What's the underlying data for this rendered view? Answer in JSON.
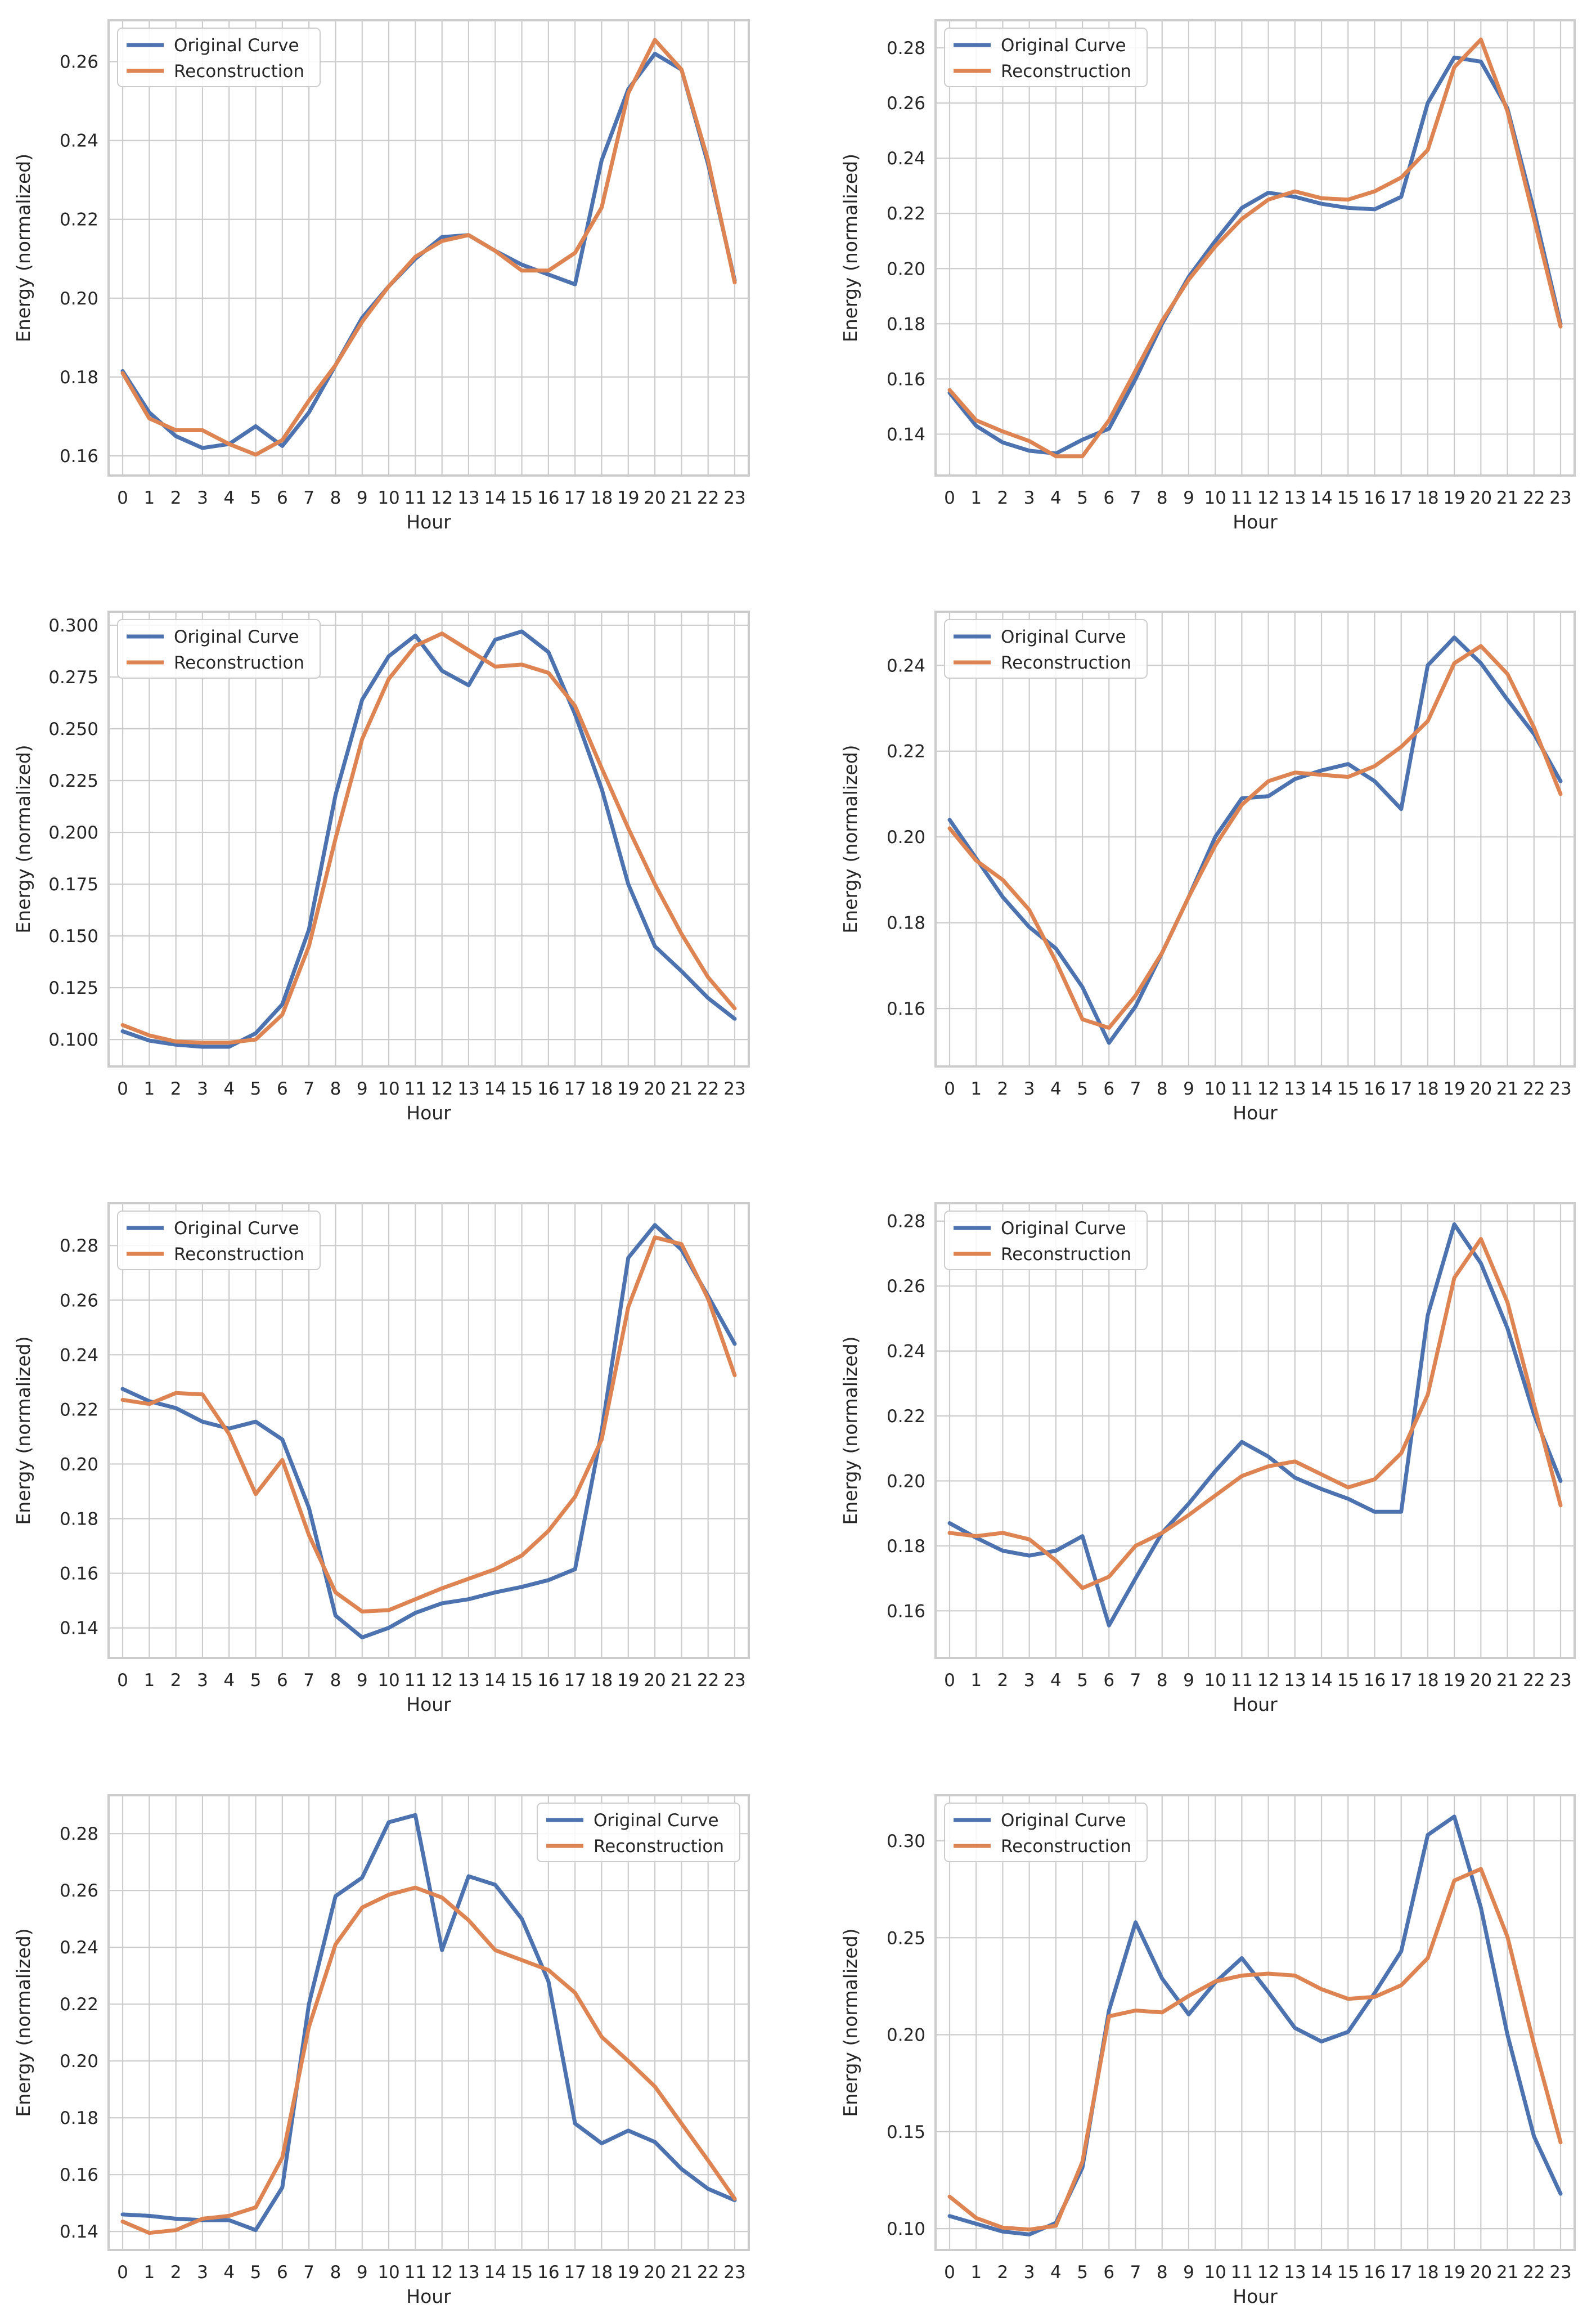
{
  "colors": {
    "original": "#4c72b0",
    "reconstruction": "#dd8452"
  },
  "chart_data": [
    {
      "type": "line",
      "xlabel": "Hour",
      "ylabel": "Energy (normalized)",
      "x": [
        0,
        1,
        2,
        3,
        4,
        5,
        6,
        7,
        8,
        9,
        10,
        11,
        12,
        13,
        14,
        15,
        16,
        17,
        18,
        19,
        20,
        21,
        22,
        23
      ],
      "ylim": [
        0.155,
        0.2705
      ],
      "yticks": [
        "0.16",
        "0.18",
        "0.20",
        "0.22",
        "0.24",
        "0.26"
      ],
      "legend_position": "upper-left",
      "series": [
        {
          "name": "Original Curve",
          "values": [
            0.1815,
            0.171,
            0.165,
            0.162,
            0.163,
            0.1675,
            0.1625,
            0.171,
            0.183,
            0.195,
            0.203,
            0.21,
            0.2155,
            0.216,
            0.212,
            0.2085,
            0.206,
            0.2035,
            0.235,
            0.253,
            0.262,
            0.258,
            0.234,
            0.2045
          ]
        },
        {
          "name": "Reconstruction",
          "values": [
            0.181,
            0.1695,
            0.1665,
            0.1665,
            0.163,
            0.1603,
            0.164,
            0.174,
            0.183,
            0.194,
            0.203,
            0.2105,
            0.2145,
            0.216,
            0.212,
            0.207,
            0.207,
            0.2115,
            0.223,
            0.252,
            0.2655,
            0.258,
            0.235,
            0.204
          ]
        }
      ]
    },
    {
      "type": "line",
      "xlabel": "Hour",
      "ylabel": "Energy (normalized)",
      "x": [
        0,
        1,
        2,
        3,
        4,
        5,
        6,
        7,
        8,
        9,
        10,
        11,
        12,
        13,
        14,
        15,
        16,
        17,
        18,
        19,
        20,
        21,
        22,
        23
      ],
      "ylim": [
        0.125,
        0.29
      ],
      "yticks": [
        "0.14",
        "0.16",
        "0.18",
        "0.20",
        "0.22",
        "0.24",
        "0.26",
        "0.28"
      ],
      "legend_position": "upper-left",
      "series": [
        {
          "name": "Original Curve",
          "values": [
            0.155,
            0.143,
            0.137,
            0.134,
            0.133,
            0.138,
            0.142,
            0.16,
            0.18,
            0.197,
            0.21,
            0.222,
            0.2275,
            0.226,
            0.2235,
            0.222,
            0.2215,
            0.226,
            0.26,
            0.2765,
            0.275,
            0.258,
            0.221,
            0.18
          ]
        },
        {
          "name": "Reconstruction",
          "values": [
            0.156,
            0.145,
            0.141,
            0.1375,
            0.132,
            0.132,
            0.145,
            0.163,
            0.181,
            0.196,
            0.208,
            0.218,
            0.225,
            0.228,
            0.2255,
            0.225,
            0.228,
            0.233,
            0.243,
            0.273,
            0.283,
            0.257,
            0.218,
            0.179
          ]
        }
      ]
    },
    {
      "type": "line",
      "xlabel": "Hour",
      "ylabel": "Energy (normalized)",
      "x": [
        0,
        1,
        2,
        3,
        4,
        5,
        6,
        7,
        8,
        9,
        10,
        11,
        12,
        13,
        14,
        15,
        16,
        17,
        18,
        19,
        20,
        21,
        22,
        23
      ],
      "ylim": [
        0.087,
        0.3065
      ],
      "yticks": [
        "0.100",
        "0.125",
        "0.150",
        "0.175",
        "0.200",
        "0.225",
        "0.250",
        "0.275",
        "0.300"
      ],
      "legend_position": "upper-left",
      "series": [
        {
          "name": "Original Curve",
          "values": [
            0.104,
            0.0995,
            0.0975,
            0.0965,
            0.0965,
            0.103,
            0.117,
            0.153,
            0.218,
            0.264,
            0.285,
            0.295,
            0.278,
            0.271,
            0.293,
            0.297,
            0.287,
            0.257,
            0.221,
            0.175,
            0.145,
            0.133,
            0.12,
            0.11
          ]
        },
        {
          "name": "Reconstruction",
          "values": [
            0.107,
            0.102,
            0.099,
            0.0985,
            0.0985,
            0.1,
            0.112,
            0.145,
            0.197,
            0.245,
            0.274,
            0.29,
            0.296,
            0.288,
            0.28,
            0.281,
            0.277,
            0.261,
            0.231,
            0.202,
            0.175,
            0.151,
            0.13,
            0.115
          ]
        }
      ]
    },
    {
      "type": "line",
      "xlabel": "Hour",
      "ylabel": "Energy (normalized)",
      "x": [
        0,
        1,
        2,
        3,
        4,
        5,
        6,
        7,
        8,
        9,
        10,
        11,
        12,
        13,
        14,
        15,
        16,
        17,
        18,
        19,
        20,
        21,
        22,
        23
      ],
      "ylim": [
        0.1465,
        0.2525
      ],
      "yticks": [
        "0.16",
        "0.18",
        "0.20",
        "0.22",
        "0.24"
      ],
      "legend_position": "upper-left",
      "series": [
        {
          "name": "Original Curve",
          "values": [
            0.204,
            0.195,
            0.186,
            0.179,
            0.174,
            0.165,
            0.152,
            0.1605,
            0.173,
            0.186,
            0.2,
            0.209,
            0.2095,
            0.2135,
            0.2155,
            0.217,
            0.213,
            0.2065,
            0.24,
            0.2465,
            0.2405,
            0.232,
            0.224,
            0.213
          ]
        },
        {
          "name": "Reconstruction",
          "values": [
            0.202,
            0.1945,
            0.19,
            0.183,
            0.171,
            0.1575,
            0.1555,
            0.163,
            0.173,
            0.186,
            0.198,
            0.2075,
            0.213,
            0.215,
            0.2145,
            0.214,
            0.2165,
            0.221,
            0.227,
            0.2405,
            0.2445,
            0.238,
            0.2255,
            0.21
          ]
        }
      ]
    },
    {
      "type": "line",
      "xlabel": "Hour",
      "ylabel": "Energy (normalized)",
      "x": [
        0,
        1,
        2,
        3,
        4,
        5,
        6,
        7,
        8,
        9,
        10,
        11,
        12,
        13,
        14,
        15,
        16,
        17,
        18,
        19,
        20,
        21,
        22,
        23
      ],
      "ylim": [
        0.129,
        0.2955
      ],
      "yticks": [
        "0.14",
        "0.16",
        "0.18",
        "0.20",
        "0.22",
        "0.24",
        "0.26",
        "0.28"
      ],
      "legend_position": "upper-left",
      "series": [
        {
          "name": "Original Curve",
          "values": [
            0.2275,
            0.223,
            0.2205,
            0.2155,
            0.213,
            0.2155,
            0.209,
            0.184,
            0.1445,
            0.1365,
            0.14,
            0.1455,
            0.149,
            0.1505,
            0.153,
            0.155,
            0.1575,
            0.1615,
            0.212,
            0.2755,
            0.2875,
            0.2785,
            0.2615,
            0.244
          ]
        },
        {
          "name": "Reconstruction",
          "values": [
            0.2235,
            0.222,
            0.226,
            0.2255,
            0.211,
            0.189,
            0.2015,
            0.174,
            0.153,
            0.146,
            0.1465,
            0.1505,
            0.1545,
            0.158,
            0.1615,
            0.1665,
            0.1755,
            0.188,
            0.209,
            0.2575,
            0.283,
            0.2805,
            0.2605,
            0.2325
          ]
        }
      ]
    },
    {
      "type": "line",
      "xlabel": "Hour",
      "ylabel": "Energy (normalized)",
      "x": [
        0,
        1,
        2,
        3,
        4,
        5,
        6,
        7,
        8,
        9,
        10,
        11,
        12,
        13,
        14,
        15,
        16,
        17,
        18,
        19,
        20,
        21,
        22,
        23
      ],
      "ylim": [
        0.1455,
        0.2855
      ],
      "yticks": [
        "0.16",
        "0.18",
        "0.20",
        "0.22",
        "0.24",
        "0.26",
        "0.28"
      ],
      "legend_position": "upper-left",
      "series": [
        {
          "name": "Original Curve",
          "values": [
            0.187,
            0.1825,
            0.1785,
            0.177,
            0.1785,
            0.183,
            0.1555,
            0.17,
            0.184,
            0.193,
            0.203,
            0.212,
            0.2075,
            0.201,
            0.1975,
            0.1945,
            0.1905,
            0.1905,
            0.251,
            0.279,
            0.267,
            0.247,
            0.2205,
            0.2
          ]
        },
        {
          "name": "Reconstruction",
          "values": [
            0.184,
            0.183,
            0.184,
            0.182,
            0.1755,
            0.167,
            0.1705,
            0.18,
            0.184,
            0.1895,
            0.1955,
            0.2015,
            0.2045,
            0.206,
            0.202,
            0.198,
            0.2005,
            0.2085,
            0.2265,
            0.2625,
            0.2745,
            0.255,
            0.2235,
            0.1925
          ]
        }
      ]
    },
    {
      "type": "line",
      "xlabel": "Hour",
      "ylabel": "Energy (normalized)",
      "x": [
        0,
        1,
        2,
        3,
        4,
        5,
        6,
        7,
        8,
        9,
        10,
        11,
        12,
        13,
        14,
        15,
        16,
        17,
        18,
        19,
        20,
        21,
        22,
        23
      ],
      "ylim": [
        0.1335,
        0.2935
      ],
      "yticks": [
        "0.14",
        "0.16",
        "0.18",
        "0.20",
        "0.22",
        "0.24",
        "0.26",
        "0.28"
      ],
      "legend_position": "upper-right",
      "series": [
        {
          "name": "Original Curve",
          "values": [
            0.146,
            0.1455,
            0.1445,
            0.144,
            0.144,
            0.1405,
            0.1555,
            0.22,
            0.258,
            0.2645,
            0.284,
            0.2865,
            0.239,
            0.265,
            0.262,
            0.25,
            0.228,
            0.178,
            0.171,
            0.1755,
            0.1715,
            0.162,
            0.155,
            0.151
          ]
        },
        {
          "name": "Reconstruction",
          "values": [
            0.1435,
            0.1395,
            0.1405,
            0.1445,
            0.1455,
            0.1485,
            0.166,
            0.212,
            0.241,
            0.254,
            0.2585,
            0.261,
            0.2575,
            0.2495,
            0.239,
            0.2355,
            0.232,
            0.224,
            0.2085,
            0.2,
            0.191,
            0.178,
            0.165,
            0.1515
          ]
        }
      ]
    },
    {
      "type": "line",
      "xlabel": "Hour",
      "ylabel": "Energy (normalized)",
      "x": [
        0,
        1,
        2,
        3,
        4,
        5,
        6,
        7,
        8,
        9,
        10,
        11,
        12,
        13,
        14,
        15,
        16,
        17,
        18,
        19,
        20,
        21,
        22,
        23
      ],
      "ylim": [
        0.089,
        0.3235
      ],
      "yticks": [
        "0.10",
        "0.15",
        "0.20",
        "0.25",
        "0.30"
      ],
      "legend_position": "upper-left",
      "series": [
        {
          "name": "Original Curve",
          "values": [
            0.1065,
            0.1025,
            0.0985,
            0.097,
            0.103,
            0.1315,
            0.2125,
            0.258,
            0.229,
            0.2105,
            0.227,
            0.2395,
            0.222,
            0.2035,
            0.1965,
            0.2015,
            0.2215,
            0.243,
            0.303,
            0.3125,
            0.2655,
            0.2,
            0.1475,
            0.118
          ]
        },
        {
          "name": "Reconstruction",
          "values": [
            0.1165,
            0.1055,
            0.1005,
            0.0995,
            0.1015,
            0.1345,
            0.2095,
            0.2125,
            0.2115,
            0.22,
            0.2275,
            0.2305,
            0.2315,
            0.2305,
            0.2235,
            0.2185,
            0.2195,
            0.2255,
            0.2395,
            0.2795,
            0.2855,
            0.2505,
            0.195,
            0.1445
          ]
        }
      ]
    }
  ]
}
